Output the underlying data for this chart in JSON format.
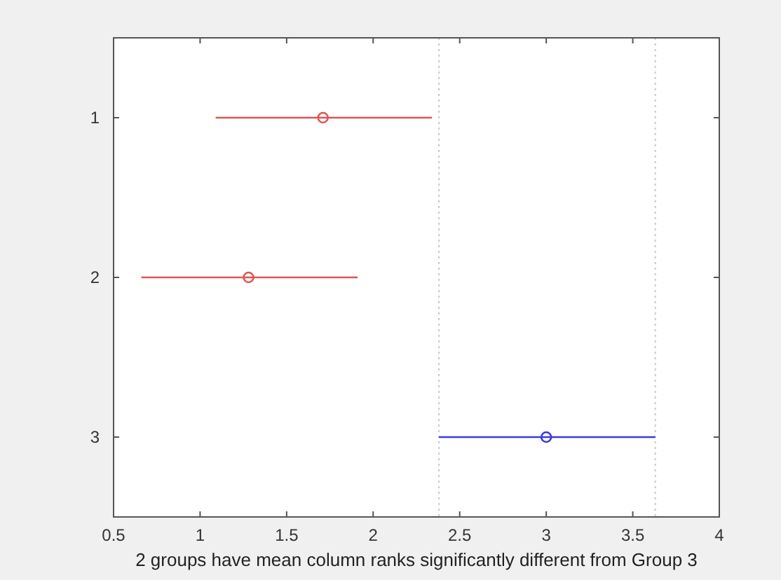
{
  "chart_data": {
    "type": "scatter",
    "xlabel": "2 groups have mean column ranks significantly different from Group 3",
    "series": [
      {
        "color": "#e05555",
        "x": [
          1.71,
          1.28
        ],
        "values": [
          1,
          2
        ],
        "xerrors": [
          [
            1.09,
            2.34
          ],
          [
            0.66,
            1.91
          ]
        ]
      },
      {
        "color": "#3a3ae0",
        "x": [
          3.0
        ],
        "values": [
          3
        ],
        "xerrors": [
          [
            2.38,
            3.63
          ]
        ]
      }
    ],
    "xlim": [
      0.5,
      4
    ],
    "xticks": [
      0.5,
      1,
      1.5,
      2,
      2.5,
      3,
      3.5,
      4
    ],
    "ylim": [
      3.5,
      0.5
    ],
    "yticks": [
      1,
      2,
      3
    ],
    "ref_lines": [
      {
        "axis": "x",
        "value": 2.38,
        "color": "#c8c8c8",
        "line_style": "dotted"
      },
      {
        "axis": "x",
        "value": 3.63,
        "color": "#c8c8c8",
        "line_style": "dotted"
      }
    ],
    "marker": "circle",
    "grid": false
  }
}
